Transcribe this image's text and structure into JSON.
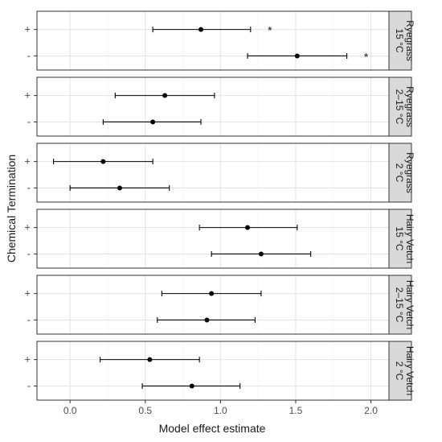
{
  "chart_data": {
    "type": "scatter",
    "xlabel": "Model effect estimate",
    "ylabel": "Chemical Termination",
    "xlim": [
      -0.22,
      2.12
    ],
    "xticks": [
      0.0,
      0.5,
      1.0,
      1.5,
      2.0
    ],
    "xtick_labels": [
      "0.0",
      "0.5",
      "1.0",
      "1.5",
      "2.0"
    ],
    "levels": [
      "+",
      "-"
    ],
    "grid": true,
    "error_bars": true,
    "panels": [
      {
        "crop": "Ryegrass",
        "temp": "15 °C",
        "points": [
          {
            "level": "+",
            "estimate": 0.87,
            "lower": 0.55,
            "upper": 1.2,
            "signif": "*"
          },
          {
            "level": "-",
            "estimate": 1.51,
            "lower": 1.18,
            "upper": 1.84,
            "signif": "*"
          }
        ]
      },
      {
        "crop": "Ryegrass",
        "temp": "2–15 °C",
        "points": [
          {
            "level": "+",
            "estimate": 0.63,
            "lower": 0.3,
            "upper": 0.96,
            "signif": ""
          },
          {
            "level": "-",
            "estimate": 0.55,
            "lower": 0.22,
            "upper": 0.87,
            "signif": ""
          }
        ]
      },
      {
        "crop": "Ryegrass",
        "temp": "2 °C",
        "points": [
          {
            "level": "+",
            "estimate": 0.22,
            "lower": -0.11,
            "upper": 0.55,
            "signif": ""
          },
          {
            "level": "-",
            "estimate": 0.33,
            "lower": 0.0,
            "upper": 0.66,
            "signif": ""
          }
        ]
      },
      {
        "crop": "Hairy Vetch",
        "temp": "15 °C",
        "points": [
          {
            "level": "+",
            "estimate": 1.18,
            "lower": 0.86,
            "upper": 1.51,
            "signif": ""
          },
          {
            "level": "-",
            "estimate": 1.27,
            "lower": 0.94,
            "upper": 1.6,
            "signif": ""
          }
        ]
      },
      {
        "crop": "Hairy Vetch",
        "temp": "2–15 °C",
        "points": [
          {
            "level": "+",
            "estimate": 0.94,
            "lower": 0.61,
            "upper": 1.27,
            "signif": ""
          },
          {
            "level": "-",
            "estimate": 0.91,
            "lower": 0.58,
            "upper": 1.23,
            "signif": ""
          }
        ]
      },
      {
        "crop": "Hairy Vetch",
        "temp": "2 °C",
        "points": [
          {
            "level": "+",
            "estimate": 0.53,
            "lower": 0.2,
            "upper": 0.86,
            "signif": ""
          },
          {
            "level": "-",
            "estimate": 0.81,
            "lower": 0.48,
            "upper": 1.13,
            "signif": ""
          }
        ]
      }
    ]
  }
}
